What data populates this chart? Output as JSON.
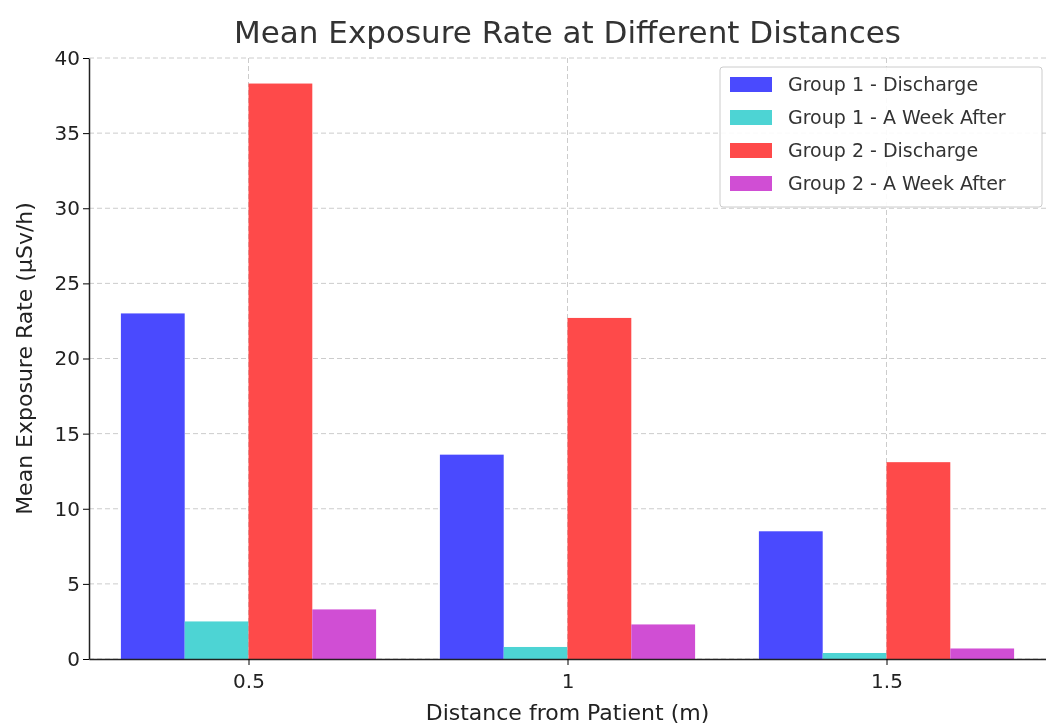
{
  "chart_data": {
    "type": "bar",
    "title": "Mean Exposure Rate at Different Distances",
    "xlabel": "Distance from Patient (m)",
    "ylabel": "Mean Exposure Rate (µSv/h)",
    "categories": [
      "0.5",
      "1",
      "1.5"
    ],
    "series": [
      {
        "name": "Group 1 - Discharge",
        "color": "#4a4afe",
        "values": [
          23.0,
          13.6,
          8.5
        ]
      },
      {
        "name": "Group 1 - A Week After",
        "color": "#4dd4d4",
        "values": [
          2.5,
          0.8,
          0.4
        ]
      },
      {
        "name": "Group 2 - Discharge",
        "color": "#fe4a4a",
        "values": [
          38.3,
          22.7,
          13.1
        ]
      },
      {
        "name": "Group 2 - A Week After",
        "color": "#d04ed4",
        "values": [
          3.3,
          2.3,
          0.7
        ]
      }
    ],
    "ylim": [
      0,
      40
    ],
    "yticks": [
      0,
      5,
      10,
      15,
      20,
      25,
      30,
      35,
      40
    ],
    "grid": true,
    "legend": "top right"
  }
}
